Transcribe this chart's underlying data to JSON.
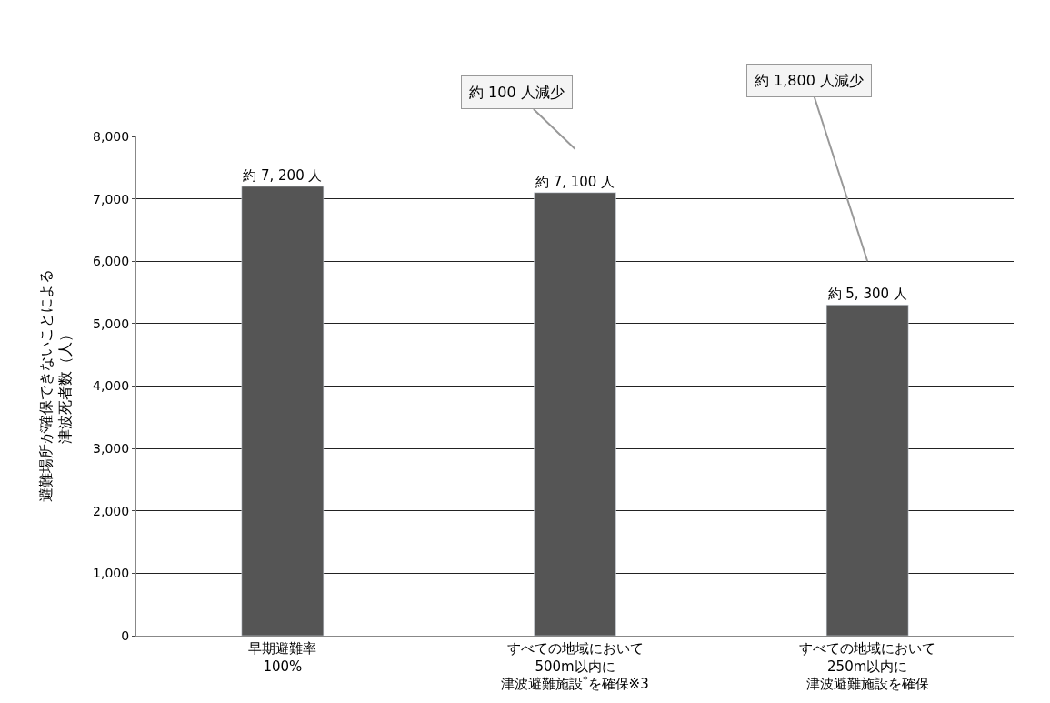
{
  "chart_data": {
    "type": "bar",
    "categories": [
      "早期避難率100%",
      "すべての地域において500m以内に津波避難施設$^{*}$を確保※3",
      "すべての地域において250m以内に津波避難施設を確保"
    ],
    "values": [
      7200,
      7100,
      5300
    ],
    "value_labels": [
      "約 7, 200 人",
      "約 7, 100 人",
      "約 5, 300 人"
    ],
    "color": "#555555",
    "ylabel": "避難場所が確保できないことによる津波死者数（人）",
    "ylim": [
      0,
      8000
    ],
    "yticks": [
      {
        "value": 0,
        "label": "0"
      },
      {
        "value": 1000,
        "label": "1,000"
      },
      {
        "value": 2000,
        "label": "2,000"
      },
      {
        "value": 3000,
        "label": "3,000"
      },
      {
        "value": 4000,
        "label": "4,000"
      },
      {
        "value": 5000,
        "label": "5,000"
      },
      {
        "value": 6000,
        "label": "6,000"
      },
      {
        "value": 7000,
        "label": "7,000"
      },
      {
        "value": 8000,
        "label": "8,000"
      }
    ],
    "grid": "y",
    "annotations": [
      "約 100 人減少",
      "約 1,800 人減少"
    ]
  }
}
